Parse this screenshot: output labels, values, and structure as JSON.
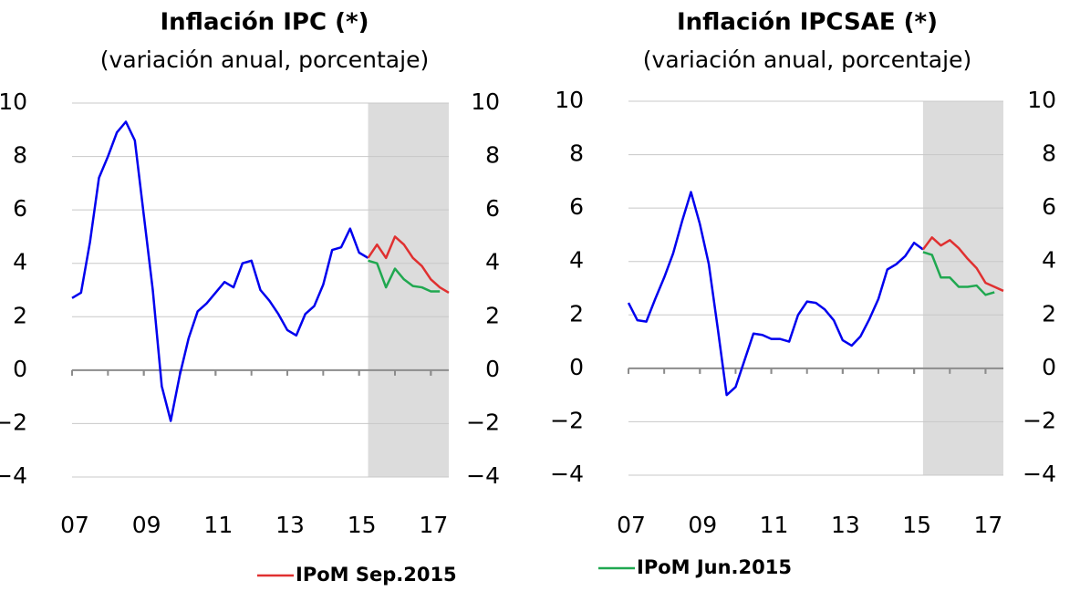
{
  "chart_data": [
    {
      "type": "line",
      "title": "Inflación IPC (*)",
      "subtitle": "(variación anual, porcentaje)",
      "xlim": [
        2007,
        2017.5
      ],
      "xticks": [
        {
          "value": 2007,
          "label": "07"
        },
        {
          "value": 2009,
          "label": "09"
        },
        {
          "value": 2011,
          "label": "11"
        },
        {
          "value": 2013,
          "label": "13"
        },
        {
          "value": 2015,
          "label": "15"
        },
        {
          "value": 2017,
          "label": "17"
        }
      ],
      "ylim": [
        -4,
        10
      ],
      "yticks": [
        {
          "value": -4,
          "label": "−4"
        },
        {
          "value": -2,
          "label": "−2"
        },
        0,
        2,
        4,
        6,
        8,
        10
      ],
      "y2lim": [
        -4,
        10
      ],
      "y2ticks": [
        {
          "value": -4,
          "label": "−4"
        },
        {
          "value": -2,
          "label": "−2"
        },
        0,
        2,
        4,
        6,
        8,
        10
      ],
      "grid": true,
      "shaded_from": 2015.25,
      "series": [
        {
          "color": "#0000ee",
          "x": [
            2007,
            2007.25,
            2007.5,
            2007.75,
            2008,
            2008.25,
            2008.5,
            2008.75,
            2009,
            2009.25,
            2009.5,
            2009.75,
            2010,
            2010.25,
            2010.5,
            2010.75,
            2011,
            2011.25,
            2011.5,
            2011.75,
            2012,
            2012.25,
            2012.5,
            2012.75,
            2013,
            2013.25,
            2013.5,
            2013.75,
            2014,
            2014.25,
            2014.5,
            2014.75,
            2015,
            2015.25
          ],
          "values": [
            2.7,
            2.9,
            4.8,
            7.2,
            8.0,
            8.9,
            9.3,
            8.6,
            5.8,
            3.0,
            -0.6,
            -1.9,
            -0.2,
            1.2,
            2.2,
            2.5,
            2.9,
            3.3,
            3.1,
            4.0,
            4.1,
            3.0,
            2.6,
            2.1,
            1.5,
            1.3,
            2.1,
            2.4,
            3.2,
            4.5,
            4.6,
            5.3,
            4.4,
            4.2
          ]
        },
        {
          "name": "IPoM Sep.2015",
          "color": "#e03030",
          "x": [
            2015.25,
            2015.5,
            2015.75,
            2016,
            2016.25,
            2016.5,
            2016.75,
            2017,
            2017.25,
            2017.5
          ],
          "values": [
            4.2,
            4.7,
            4.2,
            5.0,
            4.7,
            4.2,
            3.9,
            3.4,
            3.1,
            2.9
          ]
        },
        {
          "color": "#20a850",
          "x": [
            2015.25,
            2015.5,
            2015.75,
            2016,
            2016.25,
            2016.5,
            2016.75,
            2017,
            2017.25
          ],
          "values": [
            4.1,
            4.0,
            3.1,
            3.8,
            3.4,
            3.15,
            3.1,
            2.95,
            2.95
          ]
        }
      ]
    },
    {
      "type": "line",
      "title": "Inflación IPCSAE (*)",
      "subtitle": "(variación anual, porcentaje)",
      "xlim": [
        2007,
        2017.5
      ],
      "xticks": [
        {
          "value": 2007,
          "label": "07"
        },
        {
          "value": 2009,
          "label": "09"
        },
        {
          "value": 2011,
          "label": "11"
        },
        {
          "value": 2013,
          "label": "13"
        },
        {
          "value": 2015,
          "label": "15"
        },
        {
          "value": 2017,
          "label": "17"
        }
      ],
      "ylim": [
        -4,
        10
      ],
      "yticks": [
        {
          "value": -4,
          "label": "−4"
        },
        {
          "value": -2,
          "label": "−2"
        },
        0,
        2,
        4,
        6,
        8,
        10
      ],
      "y2lim": [
        -4,
        10
      ],
      "y2ticks": [
        {
          "value": -4,
          "label": "−4"
        },
        {
          "value": -2,
          "label": "−2"
        },
        0,
        2,
        4,
        6,
        8,
        10
      ],
      "grid": true,
      "shaded_from": 2015.25,
      "series": [
        {
          "color": "#0000ee",
          "x": [
            2007,
            2007.25,
            2007.5,
            2007.75,
            2008,
            2008.25,
            2008.5,
            2008.75,
            2009,
            2009.25,
            2009.5,
            2009.75,
            2010,
            2010.25,
            2010.5,
            2010.75,
            2011,
            2011.25,
            2011.5,
            2011.75,
            2012,
            2012.25,
            2012.5,
            2012.75,
            2013,
            2013.25,
            2013.5,
            2013.75,
            2014,
            2014.25,
            2014.5,
            2014.75,
            2015,
            2015.25
          ],
          "values": [
            2.45,
            1.8,
            1.75,
            2.6,
            3.4,
            4.3,
            5.5,
            6.6,
            5.4,
            3.9,
            1.5,
            -1.0,
            -0.7,
            0.3,
            1.3,
            1.25,
            1.1,
            1.1,
            1.0,
            2.0,
            2.5,
            2.45,
            2.2,
            1.8,
            1.05,
            0.85,
            1.2,
            1.85,
            2.6,
            3.7,
            3.9,
            4.2,
            4.7,
            4.45
          ]
        },
        {
          "color": "#e03030",
          "x": [
            2015.25,
            2015.5,
            2015.75,
            2016,
            2016.25,
            2016.5,
            2016.75,
            2017,
            2017.25,
            2017.5
          ],
          "values": [
            4.45,
            4.9,
            4.6,
            4.8,
            4.5,
            4.1,
            3.75,
            3.2,
            3.05,
            2.9
          ]
        },
        {
          "name": "IPoM Jun.2015",
          "color": "#20a850",
          "x": [
            2015.25,
            2015.5,
            2015.75,
            2016,
            2016.25,
            2016.5,
            2016.75,
            2017,
            2017.25
          ],
          "values": [
            4.35,
            4.25,
            3.4,
            3.4,
            3.05,
            3.05,
            3.1,
            2.75,
            2.85
          ]
        }
      ]
    }
  ]
}
